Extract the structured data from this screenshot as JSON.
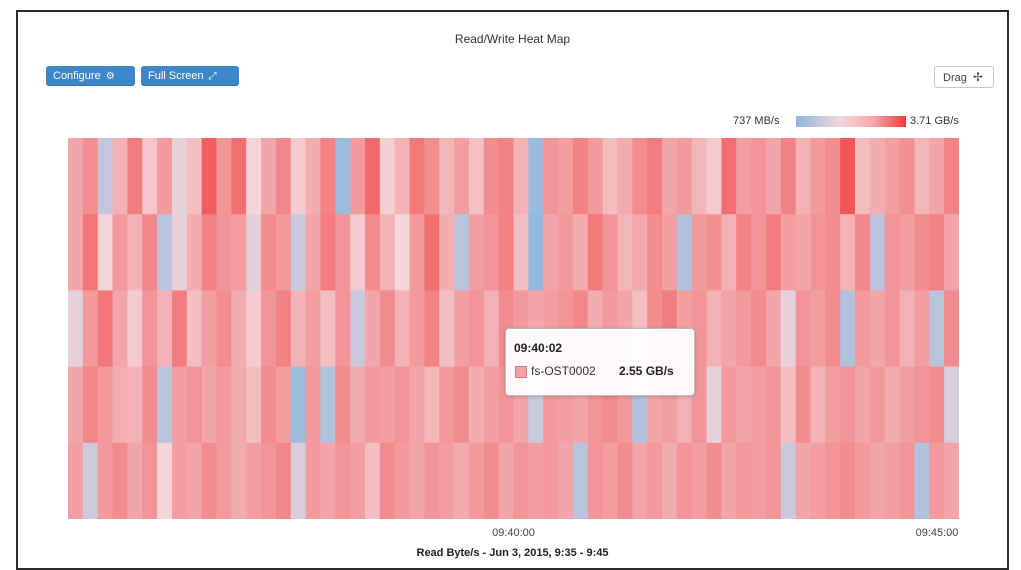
{
  "panel": {
    "title": "Read/Write Heat Map"
  },
  "toolbar": {
    "configure_label": "Configure",
    "configure_icon": "gear-icon",
    "fullscreen_label": "Full Screen",
    "fullscreen_icon": "expand-arrows-icon",
    "drag_label": "Drag",
    "drag_icon": "move-cross-icon"
  },
  "chart_data": {
    "type": "heatmap",
    "title": "Read/Write Heat Map",
    "xlabel": "Read Byte/s - Jun 3, 2015, 9:35 - 9:45",
    "ylabel": "",
    "x_ticks": [
      {
        "label": "09:40:00",
        "time": "09:40:00"
      },
      {
        "label": "09:45:00",
        "time": "09:45:00"
      }
    ],
    "x_range": [
      "09:35:00",
      "09:45:00"
    ],
    "rows": 5,
    "columns": 60,
    "color_scale": {
      "min_label": "737 MB/s",
      "max_label": "3.71 GB/s",
      "min_value_gbps": 0.737,
      "max_value_gbps": 3.71,
      "low_color": "#8fb6de",
      "mid_color": "#f4d6da",
      "high_color": "#f03a3a"
    },
    "values": [
      [
        0.55,
        0.65,
        0.18,
        0.5,
        0.72,
        0.42,
        0.6,
        0.3,
        0.45,
        0.85,
        0.62,
        0.78,
        0.35,
        0.55,
        0.68,
        0.4,
        0.52,
        0.7,
        0.05,
        0.6,
        0.8,
        0.38,
        0.5,
        0.74,
        0.65,
        0.48,
        0.58,
        0.44,
        0.66,
        0.7,
        0.5,
        0.05,
        0.62,
        0.58,
        0.7,
        0.6,
        0.45,
        0.52,
        0.66,
        0.72,
        0.55,
        0.6,
        0.48,
        0.4,
        0.78,
        0.58,
        0.62,
        0.55,
        0.7,
        0.5,
        0.6,
        0.66,
        0.88,
        0.45,
        0.52,
        0.58,
        0.64,
        0.48,
        0.55,
        0.7
      ],
      [
        0.55,
        0.75,
        0.35,
        0.6,
        0.5,
        0.68,
        0.15,
        0.3,
        0.52,
        0.7,
        0.62,
        0.58,
        0.28,
        0.66,
        0.6,
        0.2,
        0.55,
        0.72,
        0.62,
        0.4,
        0.66,
        0.5,
        0.35,
        0.6,
        0.78,
        0.52,
        0.15,
        0.58,
        0.62,
        0.7,
        0.45,
        0.02,
        0.55,
        0.6,
        0.52,
        0.74,
        0.62,
        0.48,
        0.55,
        0.66,
        0.58,
        0.12,
        0.6,
        0.64,
        0.5,
        0.7,
        0.62,
        0.72,
        0.58,
        0.55,
        0.62,
        0.66,
        0.5,
        0.68,
        0.15,
        0.62,
        0.58,
        0.66,
        0.7,
        0.55
      ],
      [
        0.3,
        0.6,
        0.75,
        0.55,
        0.4,
        0.62,
        0.5,
        0.72,
        0.45,
        0.58,
        0.66,
        0.52,
        0.4,
        0.62,
        0.7,
        0.5,
        0.58,
        0.45,
        0.62,
        0.2,
        0.55,
        0.66,
        0.5,
        0.6,
        0.7,
        0.45,
        0.58,
        0.62,
        0.5,
        0.66,
        0.6,
        0.55,
        0.58,
        0.62,
        0.68,
        0.52,
        0.6,
        0.55,
        0.45,
        0.66,
        0.72,
        0.58,
        0.62,
        0.5,
        0.55,
        0.6,
        0.66,
        0.55,
        0.3,
        0.62,
        0.58,
        0.66,
        0.12,
        0.6,
        0.55,
        0.62,
        0.5,
        0.58,
        0.15,
        0.66
      ],
      [
        0.55,
        0.68,
        0.6,
        0.52,
        0.5,
        0.66,
        0.15,
        0.58,
        0.62,
        0.55,
        0.6,
        0.52,
        0.45,
        0.66,
        0.58,
        0.05,
        0.6,
        0.12,
        0.66,
        0.52,
        0.6,
        0.58,
        0.62,
        0.55,
        0.48,
        0.6,
        0.66,
        0.52,
        0.58,
        0.62,
        0.55,
        0.2,
        0.6,
        0.58,
        0.55,
        0.62,
        0.66,
        0.6,
        0.12,
        0.55,
        0.58,
        0.5,
        0.62,
        0.3,
        0.6,
        0.55,
        0.58,
        0.62,
        0.45,
        0.66,
        0.5,
        0.58,
        0.62,
        0.55,
        0.6,
        0.52,
        0.58,
        0.62,
        0.66,
        0.25
      ],
      [
        0.58,
        0.22,
        0.6,
        0.66,
        0.55,
        0.62,
        0.35,
        0.58,
        0.55,
        0.66,
        0.6,
        0.52,
        0.58,
        0.62,
        0.68,
        0.25,
        0.6,
        0.55,
        0.62,
        0.58,
        0.45,
        0.66,
        0.6,
        0.55,
        0.62,
        0.58,
        0.52,
        0.6,
        0.66,
        0.55,
        0.62,
        0.58,
        0.6,
        0.55,
        0.15,
        0.62,
        0.58,
        0.66,
        0.55,
        0.6,
        0.52,
        0.62,
        0.58,
        0.66,
        0.55,
        0.6,
        0.58,
        0.62,
        0.2,
        0.55,
        0.58,
        0.62,
        0.66,
        0.6,
        0.55,
        0.58,
        0.62,
        0.12,
        0.6,
        0.55
      ]
    ],
    "tooltip": {
      "time": "09:40:02",
      "series": "fs-OST0002",
      "value": "2.55 GB/s",
      "swatch_color": "#f4a1a3"
    }
  }
}
